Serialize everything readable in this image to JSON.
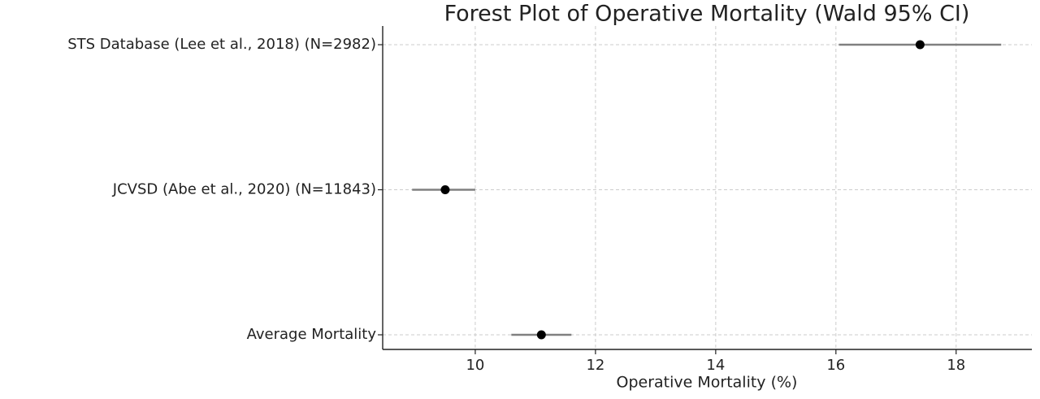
{
  "chart_data": {
    "type": "forest",
    "title": "Forest Plot of Operative Mortality (Wald 95% CI)",
    "x_label": "Operative Mortality (%)",
    "categories": [
      "STS Database (Lee et al., 2018) (N=2982)",
      "JCVSD (Abe et al., 2020) (N=11843)",
      "Average Mortality"
    ],
    "values": [
      17.4,
      9.5,
      11.1
    ],
    "lower": [
      16.05,
      8.95,
      10.6
    ],
    "upper": [
      18.75,
      10.0,
      11.6
    ],
    "point_color": "#000000",
    "ci_color": "#808080",
    "xlim": [
      8.46,
      19.26
    ],
    "xticks": [
      10,
      12,
      14,
      16,
      18
    ],
    "grid": true
  }
}
